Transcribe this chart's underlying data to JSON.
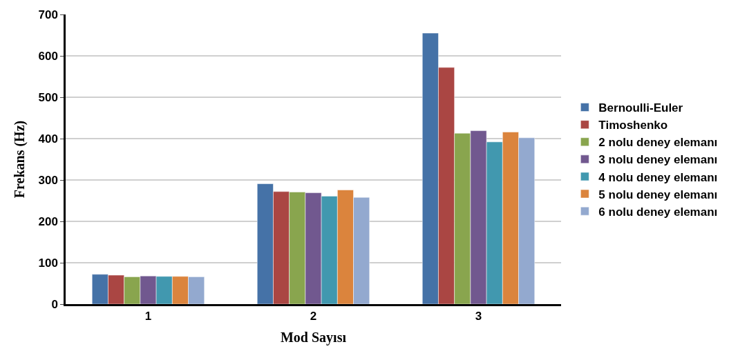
{
  "chart_data": {
    "type": "bar",
    "xlabel": "Mod Sayısı",
    "ylabel": "Frekans (Hz)",
    "categories": [
      "1",
      "2",
      "3"
    ],
    "series": [
      {
        "name": "Bernoulli-Euler",
        "color": "#4572a7",
        "values": [
          72,
          291,
          655
        ]
      },
      {
        "name": "Timoshenko",
        "color": "#aa4643",
        "values": [
          70,
          272,
          572
        ]
      },
      {
        "name": "2 nolu deney elemanı",
        "color": "#89a54e",
        "values": [
          66,
          271,
          413
        ]
      },
      {
        "name": "3 nolu deney elemanı",
        "color": "#71588f",
        "values": [
          68,
          269,
          419
        ]
      },
      {
        "name": "4 nolu deney elemanı",
        "color": "#4198af",
        "values": [
          67,
          261,
          392
        ]
      },
      {
        "name": "5 nolu deney elemanı",
        "color": "#db843d",
        "values": [
          67,
          276,
          416
        ]
      },
      {
        "name": "6 nolu deney elemanı",
        "color": "#93a9cf",
        "values": [
          66,
          258,
          402
        ]
      }
    ],
    "ylim": [
      0,
      700
    ],
    "yticks": [
      0,
      100,
      200,
      300,
      400,
      500,
      600,
      700
    ],
    "grid": "y",
    "legend": "right"
  }
}
